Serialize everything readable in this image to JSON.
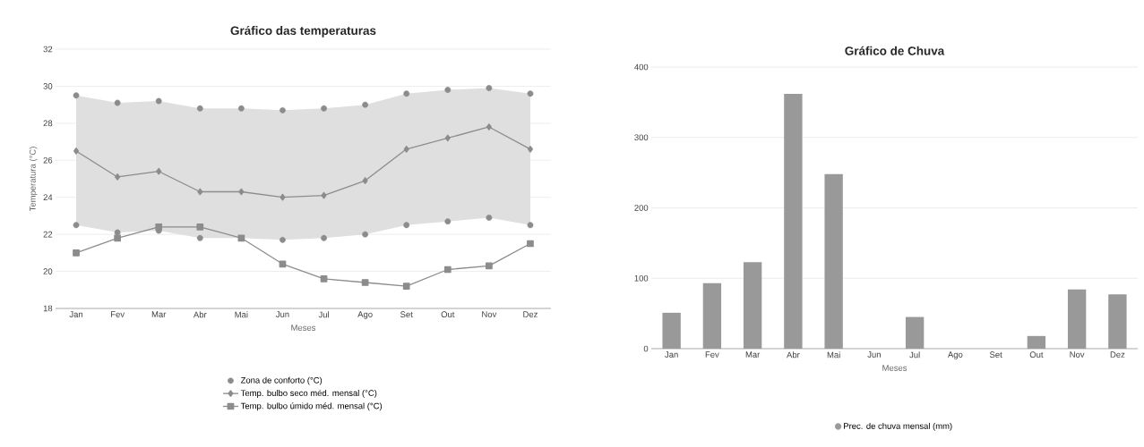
{
  "chart_data": [
    {
      "type": "line",
      "title": "Gráfico das temperaturas",
      "xlabel": "Meses",
      "ylabel": "Temperatura (°C)",
      "categories": [
        "Jan",
        "Fev",
        "Mar",
        "Abr",
        "Mai",
        "Jun",
        "Jul",
        "Ago",
        "Set",
        "Out",
        "Nov",
        "Dez"
      ],
      "series": [
        {
          "name": "Zona de conforto (°C)",
          "type": "scatter",
          "color": "#8c8c8c",
          "marker": "circle",
          "values": [
            29.5,
            29.1,
            29.2,
            28.8,
            28.8,
            28.7,
            28.8,
            29.0,
            29.6,
            29.8,
            29.9,
            29.6
          ],
          "lower": [
            22.5,
            22.1,
            22.2,
            21.8,
            21.8,
            21.7,
            21.8,
            22.0,
            22.5,
            22.7,
            22.9,
            22.5
          ],
          "upper": [
            29.5,
            29.1,
            29.2,
            28.8,
            28.8,
            28.7,
            28.8,
            29.0,
            29.6,
            29.8,
            29.9,
            29.6
          ]
        },
        {
          "type": "scatter",
          "color": "#8c8c8c",
          "marker": "circle",
          "values": [
            22.5,
            22.1,
            22.2,
            21.8,
            null,
            21.7,
            21.8,
            22.0,
            22.5,
            22.7,
            22.9,
            22.5
          ]
        },
        {
          "name": "Temp. bulbo seco méd. mensal (°C)",
          "type": "line",
          "color": "#8c8c8c",
          "marker": "diamond",
          "values": [
            26.5,
            25.1,
            25.4,
            24.3,
            24.3,
            24.0,
            24.1,
            24.9,
            26.6,
            27.2,
            27.8,
            26.6
          ]
        },
        {
          "name": "Temp. bulbo úmido méd. mensal (°C)",
          "type": "line",
          "color": "#8c8c8c",
          "marker": "square",
          "values": [
            21.0,
            21.8,
            22.4,
            22.4,
            21.8,
            20.4,
            19.6,
            19.4,
            19.2,
            20.1,
            20.3,
            21.5
          ]
        }
      ],
      "ylim": [
        18,
        32
      ],
      "yticks": [
        18,
        20,
        22,
        24,
        26,
        28,
        30,
        32
      ],
      "grid": "y",
      "legend": "bottom"
    },
    {
      "type": "bar",
      "title": "Gráfico de Chuva",
      "xlabel": "Meses",
      "categories": [
        "Jan",
        "Fev",
        "Mar",
        "Abr",
        "Mai",
        "Jun",
        "Jul",
        "Ago",
        "Set",
        "Out",
        "Nov",
        "Dez"
      ],
      "series": [
        {
          "name": "Prec. de chuva mensal (mm)",
          "color": "#999999",
          "values": [
            51,
            93,
            123,
            362,
            248,
            0,
            45,
            0,
            0,
            18,
            84,
            77
          ]
        }
      ],
      "ylim": [
        0,
        400
      ],
      "yticks": [
        0,
        100,
        200,
        300,
        400
      ],
      "grid": "y",
      "legend": "bottom"
    }
  ]
}
